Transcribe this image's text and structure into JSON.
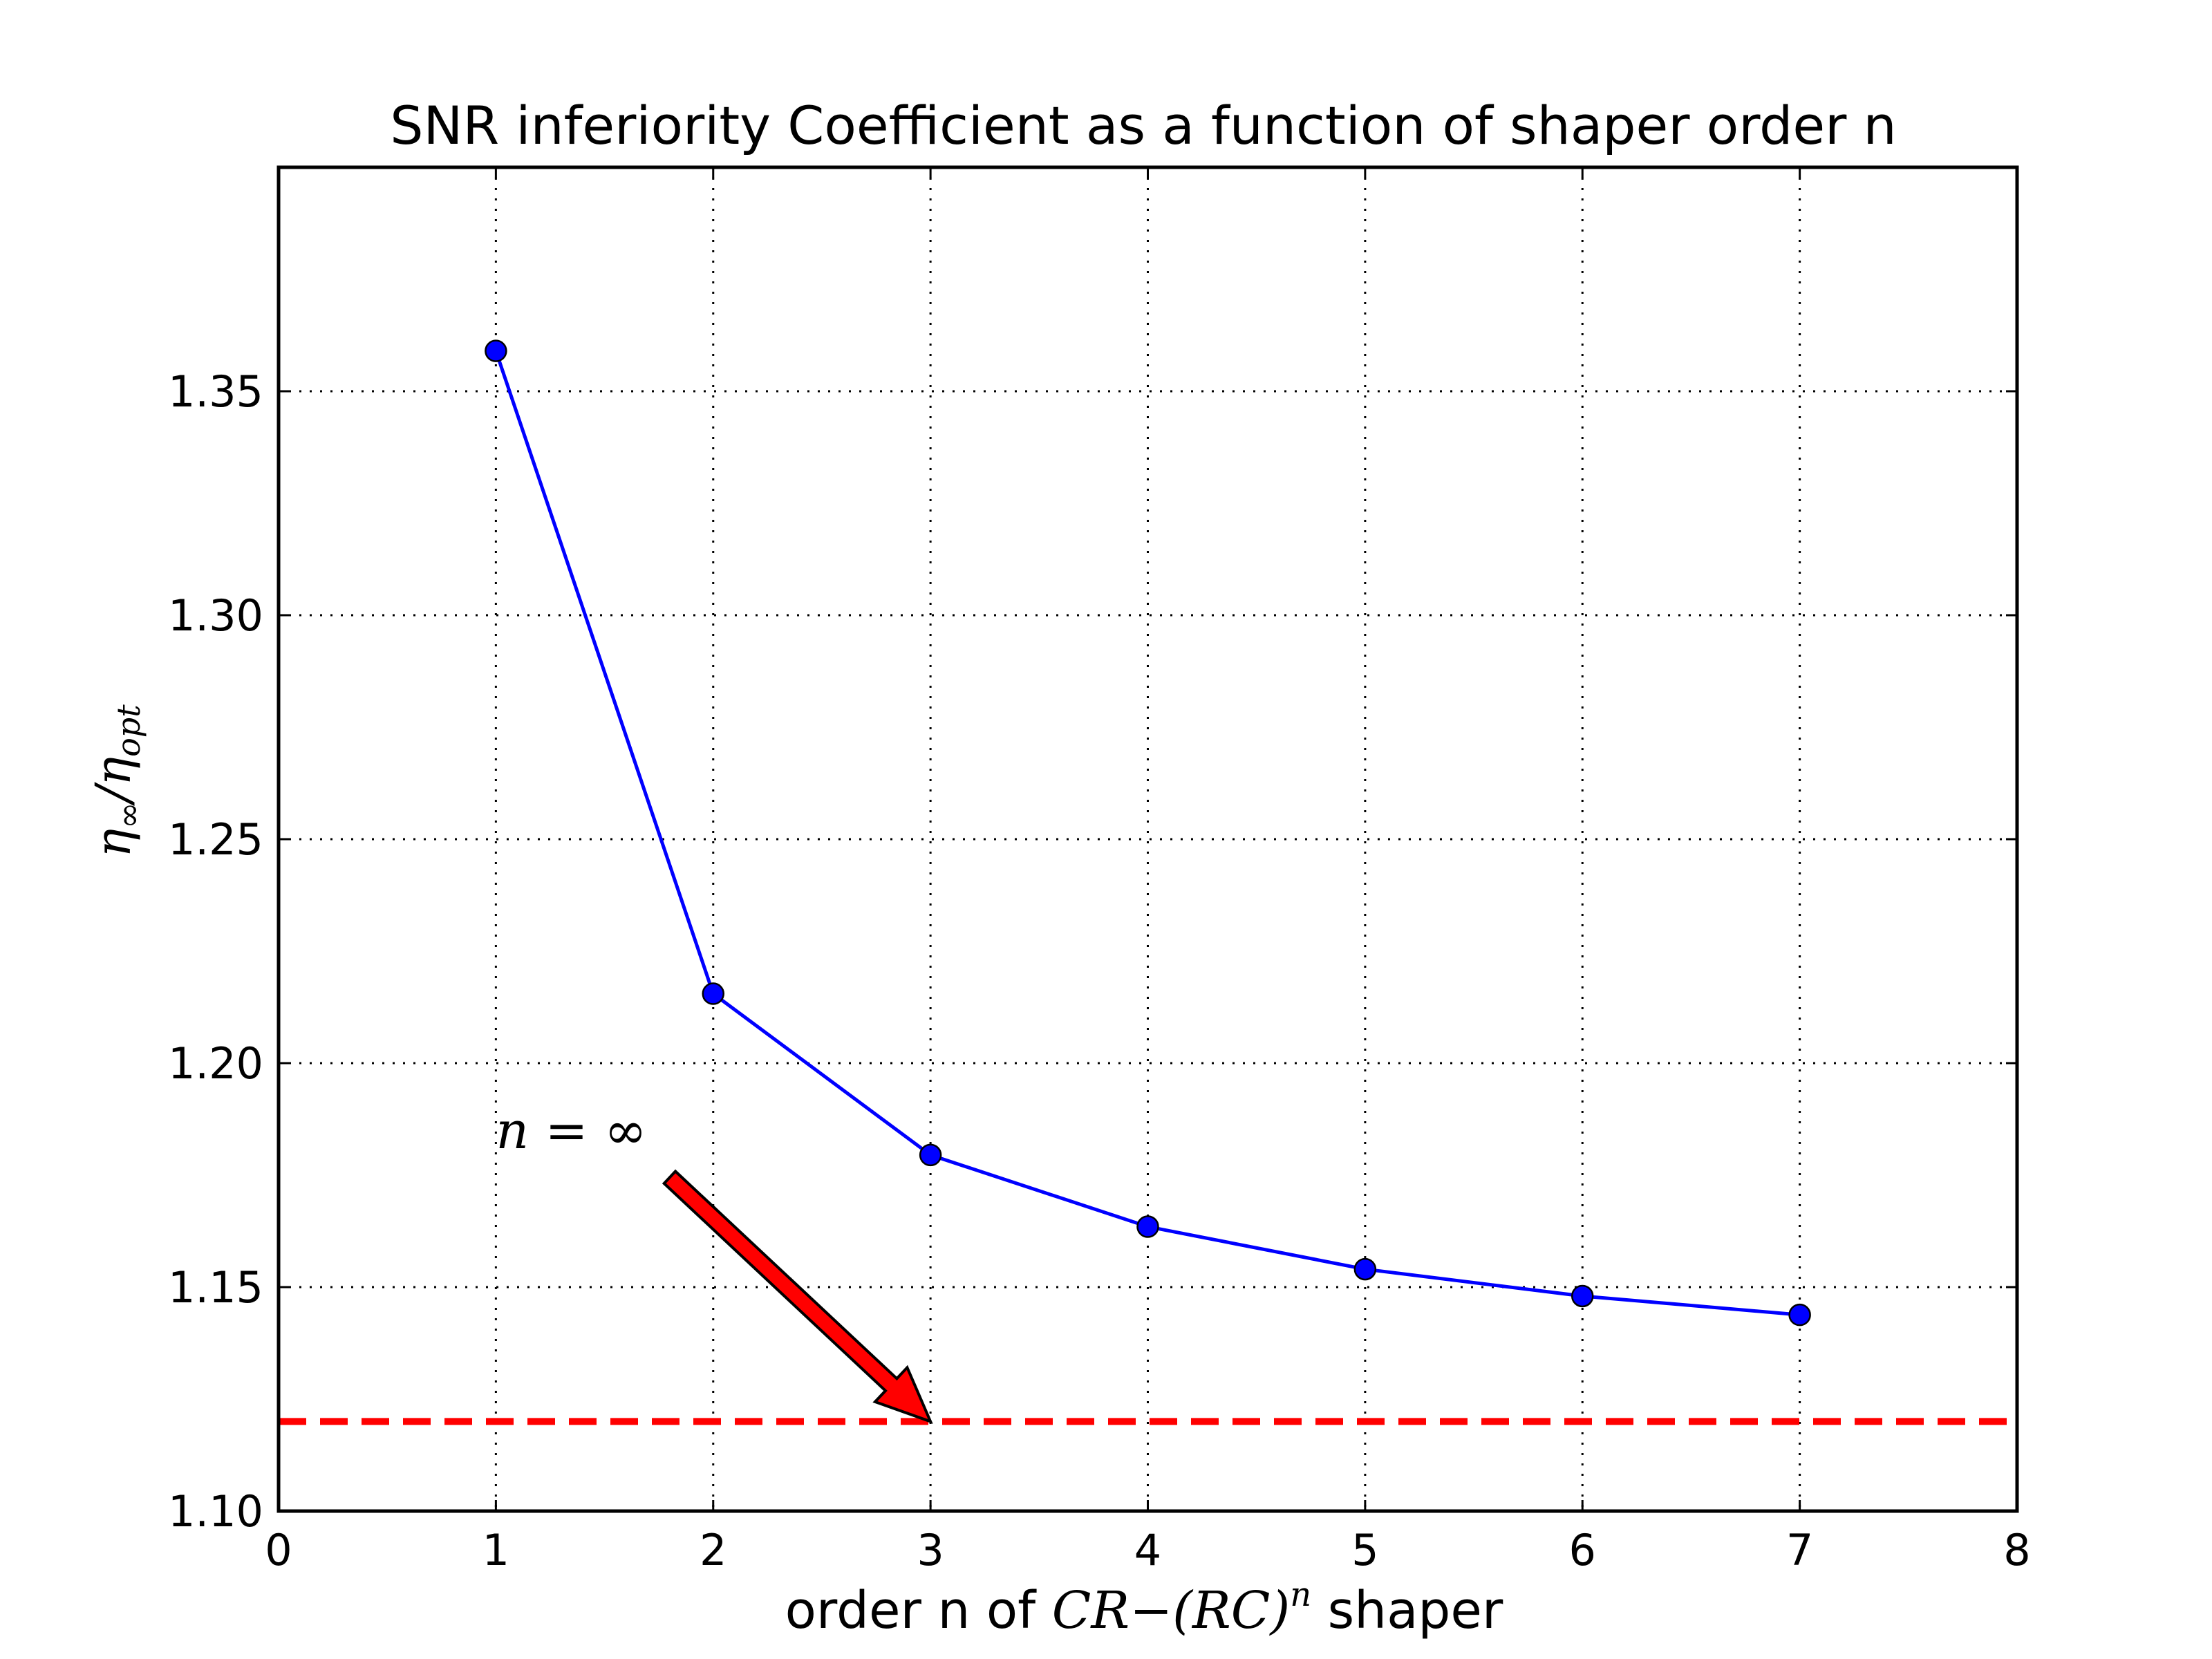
{
  "chart_data": {
    "type": "line",
    "title": "SNR inferiority Coefficient as a function of shaper order n",
    "xlabel": {
      "prefix": "order n of ",
      "math_base": "CR−(RC)",
      "math_sup": "n",
      "suffix": " shaper"
    },
    "ylabel": {
      "base1": "η",
      "sub1": "∞",
      "slash": "/",
      "base2": "η",
      "sub2": "opt"
    },
    "xlim": [
      0,
      8
    ],
    "ylim": [
      1.1,
      1.4
    ],
    "x_ticks": [
      0,
      1,
      2,
      3,
      4,
      5,
      6,
      7,
      8
    ],
    "x_tick_labels": [
      "0",
      "1",
      "2",
      "3",
      "4",
      "5",
      "6",
      "7",
      "8"
    ],
    "y_ticks": [
      1.1,
      1.15,
      1.2,
      1.25,
      1.3,
      1.35
    ],
    "y_tick_labels": [
      "1.10",
      "1.15",
      "1.20",
      "1.25",
      "1.30",
      "1.35"
    ],
    "grid": true,
    "grid_style": "dotted",
    "series": [
      {
        "x": [
          1,
          2,
          3,
          4,
          5,
          6,
          7
        ],
        "y": [
          1.359,
          1.2155,
          1.1795,
          1.1635,
          1.154,
          1.148,
          1.1438
        ],
        "color": "#0000ff",
        "marker": "circle"
      }
    ],
    "reference_line": {
      "y": 1.12,
      "color": "#ff0000",
      "style": "dashed"
    },
    "annotation": {
      "text": "n = ∞",
      "text_at": [
        1.0,
        1.181
      ],
      "arrow_from": [
        1.8,
        1.1745
      ],
      "arrow_to": [
        3.0,
        1.12
      ],
      "arrow_color": "#ff0000"
    }
  }
}
